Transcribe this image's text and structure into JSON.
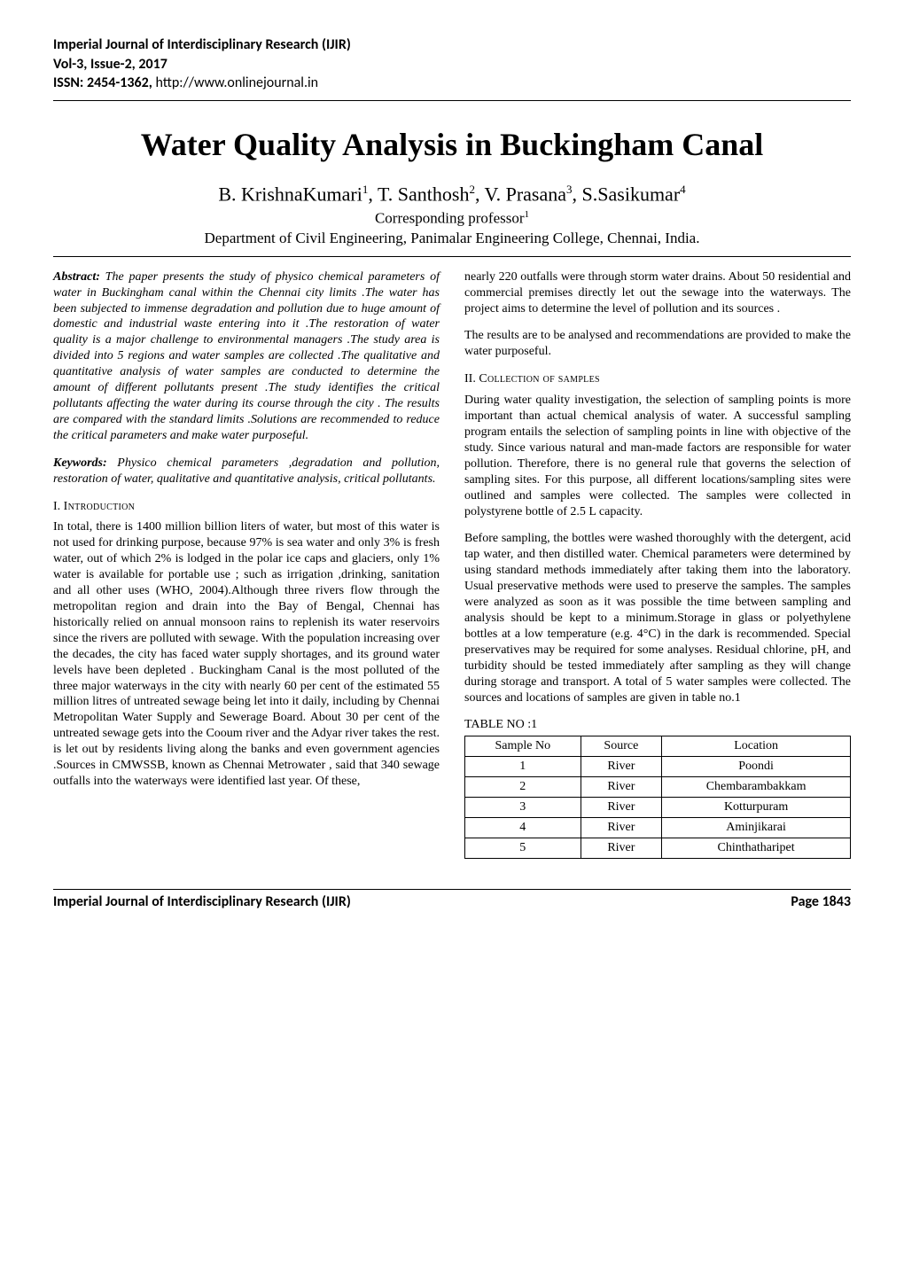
{
  "journal": {
    "name": "Imperial Journal of Interdisciplinary Research (IJIR)",
    "vol": "Vol-3, Issue-2, 2017",
    "issn_label": "ISSN: 2454-1362,",
    "url": "http://www.onlinejournal.in"
  },
  "title": "Water Quality Analysis in Buckingham Canal",
  "authors_html": "B. KrishnaKumari<sup>1</sup>, T. Santhosh<sup>2</sup>, V. Prasana<sup>3</sup>, S.Sasikumar<sup>4</sup>",
  "corresponding": "Corresponding professor",
  "corresponding_sup": "1",
  "affiliation": "Department of Civil Engineering,  Panimalar Engineering College, Chennai, India.",
  "abstract": {
    "label": "Abstract:",
    "text": "The paper presents the study of physico chemical parameters of water in Buckingham canal within the Chennai city limits .The water has been subjected to immense degradation and pollution due to huge amount of domestic and industrial waste entering into it .The restoration of water quality is a major challenge to environmental managers .The study area is divided into 5 regions and water samples are collected .The qualitative and quantitative analysis of water samples are conducted to determine the amount of different pollutants present .The study identifies the critical pollutants affecting the water during its course through the city . The results are compared with the standard limits .Solutions are recommended to reduce the critical parameters and make water purposeful."
  },
  "keywords": {
    "label": "Keywords:",
    "text": "Physico chemical parameters ,degradation and pollution, restoration of water, qualitative and quantitative analysis, critical pollutants."
  },
  "sections": {
    "intro_heading_roman": "I.",
    "intro_heading": "Introduction",
    "intro_body": "In total, there is 1400 million billion liters of water, but most of this water is not used for drinking purpose, because 97% is sea water and only 3% is fresh water, out of which 2% is lodged in the polar ice caps and glaciers, only 1% water is available for portable use ; such as irrigation ,drinking, sanitation and all other uses (WHO, 2004).Although three rivers flow through the metropolitan region and drain into the Bay of Bengal, Chennai has historically relied on annual monsoon rains to replenish its water reservoirs since the rivers are polluted with sewage. With the population increasing over the decades, the city has faced water supply shortages, and its ground water levels have been depleted . Buckingham Canal is the most polluted of the three major waterways in the city with nearly 60 per cent of the estimated 55 million litres of untreated sewage being let into it daily, including by Chennai Metropolitan Water Supply and Sewerage Board. About 30 per cent of the untreated sewage gets into the Cooum river and the Adyar river takes the rest. is let out by residents living along the banks and even government agencies .Sources in CMWSSB, known as Chennai Metrowater , said that 340 sewage outfalls into the waterways were identified last year. Of these,",
    "right_p1": "nearly 220 outfalls were through storm water drains. About 50 residential and commercial premises directly let out the sewage into the waterways. The project aims to determine the level of pollution and its sources .",
    "right_p2": "The results are to be analysed and recommendations are provided to make the water purposeful.",
    "collection_heading_roman": "II.",
    "collection_heading": "Collection of samples",
    "collection_p1": "During water quality investigation, the selection of sampling points is more important than actual chemical analysis of water. A successful sampling program entails the selection of sampling points in line with objective of the study. Since various natural and man-made factors are responsible for water pollution. Therefore, there is no general rule that governs the selection of sampling sites. For this purpose, all different locations/sampling sites were outlined and samples were collected. The samples were collected in polystyrene bottle of 2.5 L capacity.",
    "collection_p2": "Before sampling, the bottles were washed thoroughly with the detergent, acid tap water, and then distilled water. Chemical parameters were determined by using standard methods immediately after taking them into the laboratory. Usual preservative methods were used to preserve the samples. The samples were analyzed as soon as it was possible the time between sampling and analysis should be kept to a minimum.Storage in glass or polyethylene bottles at a low temperature (e.g. 4°C) in the dark is recommended. Special preservatives may be required for some analyses. Residual chlorine, pH, and turbidity should be tested immediately after sampling as they will change during storage and transport. A total of 5 water samples were collected. The sources and locations of samples are given in table no.1"
  },
  "table": {
    "caption": "TABLE NO :1",
    "headers": [
      "Sample No",
      "Source",
      "Location"
    ],
    "rows": [
      [
        "1",
        "River",
        "Poondi"
      ],
      [
        "2",
        "River",
        "Chembarambakkam"
      ],
      [
        "3",
        "River",
        "Kotturpuram"
      ],
      [
        "4",
        "River",
        "Aminjikarai"
      ],
      [
        "5",
        "River",
        "Chinthatharipet"
      ]
    ]
  },
  "footer": {
    "left": "Imperial Journal of Interdisciplinary Research (IJIR)",
    "right": "Page 1843"
  },
  "colors": {
    "text": "#000000",
    "background": "#ffffff",
    "rule": "#000000"
  },
  "fonts": {
    "body": "Times New Roman",
    "header_footer": "Calibri"
  }
}
